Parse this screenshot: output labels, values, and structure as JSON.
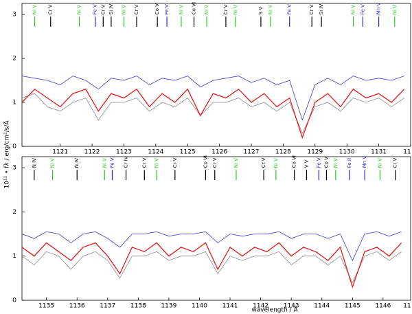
{
  "chart_data": [
    {
      "type": "line",
      "ylabel": "10¹¹ • fλ / erg/cm²/s/Å",
      "x": [
        1119.8,
        1120.2,
        1120.6,
        1121.0,
        1121.4,
        1121.8,
        1122.2,
        1122.6,
        1123.0,
        1123.4,
        1123.8,
        1124.2,
        1124.6,
        1125.0,
        1125.4,
        1125.8,
        1126.2,
        1126.6,
        1127.0,
        1127.4,
        1127.8,
        1128.2,
        1128.6,
        1129.0,
        1129.4,
        1129.8,
        1130.2,
        1130.6,
        1131.0,
        1131.4,
        1131.8
      ],
      "series": [
        {
          "color": "#8c8c8c",
          "values": [
            1.1,
            1.2,
            0.9,
            0.8,
            1.0,
            1.1,
            0.6,
            1.0,
            1.0,
            1.1,
            0.8,
            1.0,
            0.9,
            1.1,
            0.7,
            1.0,
            1.0,
            1.1,
            0.9,
            1.0,
            0.8,
            1.0,
            0.3,
            0.9,
            1.0,
            0.8,
            1.1,
            1.0,
            1.1,
            0.9,
            1.1
          ]
        },
        {
          "color": "#3b3bd6",
          "values": [
            1.6,
            1.55,
            1.5,
            1.4,
            1.6,
            1.5,
            1.3,
            1.55,
            1.5,
            1.6,
            1.4,
            1.55,
            1.5,
            1.6,
            1.35,
            1.5,
            1.55,
            1.6,
            1.45,
            1.55,
            1.4,
            1.5,
            0.6,
            1.4,
            1.55,
            1.4,
            1.6,
            1.5,
            1.55,
            1.5,
            1.6
          ]
        },
        {
          "color": "#e01b1b",
          "values": [
            1.0,
            1.3,
            1.1,
            0.9,
            1.2,
            1.3,
            0.8,
            1.2,
            1.1,
            1.3,
            0.9,
            1.2,
            1.0,
            1.3,
            0.7,
            1.2,
            1.1,
            1.3,
            1.0,
            1.2,
            0.9,
            1.1,
            0.2,
            1.0,
            1.2,
            0.9,
            1.3,
            1.1,
            1.2,
            1.0,
            1.3
          ]
        }
      ],
      "xlim": [
        1119.8,
        1132.0
      ],
      "ylim": [
        0,
        3.25
      ],
      "xticks": [
        1121,
        1122,
        1123,
        1124,
        1125,
        1126,
        1127,
        1128,
        1129,
        1130,
        1131,
        {
          "value": 1132,
          "label": "11"
        }
      ],
      "yticks": [
        0,
        1,
        2,
        3
      ],
      "line_ids": [
        {
          "label": "Ni V",
          "x": 1120.2,
          "color": "#22cc22"
        },
        {
          "label": "Cr V",
          "x": 1120.7,
          "color": "#000000"
        },
        {
          "label": "Ni V",
          "x": 1121.6,
          "color": "#22cc22"
        },
        {
          "label": "Fe V",
          "x": 1122.1,
          "color": "#2222dd"
        },
        {
          "label": "Cr V",
          "x": 1122.35,
          "color": "#000000"
        },
        {
          "label": "Si IV",
          "x": 1122.6,
          "color": "#000000"
        },
        {
          "label": "Ni V",
          "x": 1123.0,
          "color": "#22cc22"
        },
        {
          "label": "Cr V",
          "x": 1123.4,
          "color": "#000000"
        },
        {
          "label": "Co V",
          "x": 1124.05,
          "color": "#000000"
        },
        {
          "label": "Fe V",
          "x": 1124.35,
          "color": "#2222dd"
        },
        {
          "label": "Ni V",
          "x": 1124.8,
          "color": "#22cc22"
        },
        {
          "label": "Co VI",
          "x": 1125.2,
          "color": "#000000"
        },
        {
          "label": "Ni V",
          "x": 1125.6,
          "color": "#22cc22"
        },
        {
          "label": "Cr V",
          "x": 1126.2,
          "color": "#000000"
        },
        {
          "label": "Ni V",
          "x": 1126.5,
          "color": "#22cc22"
        },
        {
          "label": "S V",
          "x": 1127.3,
          "color": "#000000"
        },
        {
          "label": "Ni V",
          "x": 1127.6,
          "color": "#22cc22"
        },
        {
          "label": "Fe V",
          "x": 1128.2,
          "color": "#2222dd"
        },
        {
          "label": "Cr V",
          "x": 1128.9,
          "color": "#000000"
        },
        {
          "label": "Si IV",
          "x": 1129.2,
          "color": "#000000"
        },
        {
          "label": "Ni V",
          "x": 1130.2,
          "color": "#22cc22"
        },
        {
          "label": "Fe V",
          "x": 1130.5,
          "color": "#2222dd"
        },
        {
          "label": "Mn V",
          "x": 1131.0,
          "color": "#2222dd"
        },
        {
          "label": "Ni V",
          "x": 1131.5,
          "color": "#22cc22"
        }
      ]
    },
    {
      "type": "line",
      "xlabel": "wavelength / Å",
      "x": [
        1134.2,
        1134.6,
        1135.0,
        1135.4,
        1135.8,
        1136.2,
        1136.6,
        1137.0,
        1137.4,
        1137.8,
        1138.2,
        1138.6,
        1139.0,
        1139.4,
        1139.8,
        1140.2,
        1140.6,
        1141.0,
        1141.4,
        1141.8,
        1142.2,
        1142.6,
        1143.0,
        1143.4,
        1143.8,
        1144.2,
        1144.6,
        1145.0,
        1145.4,
        1145.8,
        1146.2,
        1146.6
      ],
      "series": [
        {
          "color": "#8c8c8c",
          "values": [
            1.0,
            0.8,
            1.1,
            1.0,
            0.7,
            1.0,
            1.1,
            0.9,
            0.5,
            1.0,
            1.0,
            1.1,
            0.9,
            1.0,
            1.0,
            1.1,
            0.6,
            1.0,
            0.9,
            1.0,
            1.0,
            1.1,
            0.8,
            1.0,
            1.0,
            0.8,
            1.0,
            0.4,
            1.0,
            1.1,
            0.9,
            1.1
          ]
        },
        {
          "color": "#3b3bd6",
          "values": [
            1.5,
            1.4,
            1.55,
            1.5,
            1.3,
            1.5,
            1.55,
            1.4,
            1.2,
            1.5,
            1.5,
            1.55,
            1.45,
            1.5,
            1.5,
            1.55,
            1.3,
            1.5,
            1.45,
            1.5,
            1.5,
            1.55,
            1.4,
            1.5,
            1.5,
            1.4,
            1.5,
            0.9,
            1.5,
            1.55,
            1.45,
            1.55
          ]
        },
        {
          "color": "#e01b1b",
          "values": [
            1.2,
            1.0,
            1.3,
            1.1,
            0.9,
            1.2,
            1.3,
            1.0,
            0.6,
            1.2,
            1.1,
            1.3,
            1.0,
            1.2,
            1.1,
            1.3,
            0.7,
            1.2,
            1.0,
            1.2,
            1.1,
            1.3,
            1.0,
            1.2,
            1.1,
            0.9,
            1.2,
            0.3,
            1.1,
            1.2,
            1.0,
            1.3
          ]
        }
      ],
      "xlim": [
        1134.2,
        1146.9
      ],
      "ylim": [
        0,
        3.25
      ],
      "xticks": [
        1135,
        1136,
        1137,
        1138,
        1139,
        1140,
        1141,
        1142,
        1143,
        1144,
        1145,
        1146,
        {
          "value": 1147,
          "label": "11"
        }
      ],
      "yticks": [
        0,
        1,
        2,
        3
      ],
      "line_ids": [
        {
          "label": "N IV",
          "x": 1134.6,
          "color": "#000000"
        },
        {
          "label": "Ni V",
          "x": 1135.2,
          "color": "#22cc22"
        },
        {
          "label": "N IV",
          "x": 1136.0,
          "color": "#000000"
        },
        {
          "label": "Ni V",
          "x": 1136.9,
          "color": "#22cc22"
        },
        {
          "label": "Fe V",
          "x": 1137.15,
          "color": "#2222dd"
        },
        {
          "label": "Cr IV",
          "x": 1137.6,
          "color": "#000000"
        },
        {
          "label": "Cr V",
          "x": 1138.2,
          "color": "#000000"
        },
        {
          "label": "Ni V",
          "x": 1138.6,
          "color": "#22cc22"
        },
        {
          "label": "Cr V",
          "x": 1139.2,
          "color": "#000000"
        },
        {
          "label": "Co VI",
          "x": 1140.2,
          "color": "#000000"
        },
        {
          "label": "Cr V",
          "x": 1140.5,
          "color": "#000000"
        },
        {
          "label": "Ni V",
          "x": 1141.2,
          "color": "#22cc22"
        },
        {
          "label": "Cr V",
          "x": 1142.1,
          "color": "#000000"
        },
        {
          "label": "Ni V",
          "x": 1142.5,
          "color": "#22cc22"
        },
        {
          "label": "Co VI",
          "x": 1143.1,
          "color": "#000000"
        },
        {
          "label": "V V",
          "x": 1143.5,
          "color": "#000000"
        },
        {
          "label": "Fe V",
          "x": 1143.9,
          "color": "#2222dd"
        },
        {
          "label": "Co V",
          "x": 1144.15,
          "color": "#000000"
        },
        {
          "label": "Ni V",
          "x": 1144.45,
          "color": "#22cc22"
        },
        {
          "label": "Fe II",
          "x": 1144.9,
          "color": "#2222dd"
        },
        {
          "label": "Mn V",
          "x": 1145.4,
          "color": "#2222dd"
        },
        {
          "label": "Ni V",
          "x": 1145.9,
          "color": "#22cc22"
        },
        {
          "label": "Cr V",
          "x": 1146.4,
          "color": "#000000"
        }
      ]
    }
  ]
}
